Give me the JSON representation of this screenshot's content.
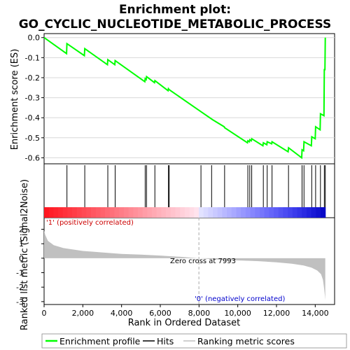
{
  "chart_data": {
    "type": "line",
    "title_lines": [
      "Enrichment plot:",
      "GO_CYCLIC_NUCLEOTIDE_METABOLIC_PROCESS"
    ],
    "panels": {
      "enrichment": {
        "ylabel": "Enrichment score (ES)",
        "ylim": [
          -0.63,
          0.02
        ],
        "yticks": [
          0.0,
          -0.1,
          -0.2,
          -0.3,
          -0.4,
          -0.5,
          -0.6
        ],
        "ytick_labels": [
          "0.0",
          "-0.1",
          "-0.2",
          "-0.3",
          "-0.4",
          "-0.5",
          "-0.6"
        ],
        "line_color": "#00ff00",
        "series": [
          {
            "x": [
              0,
              1160,
              1180,
              2080,
              2100,
              3270,
              3290,
              3650,
              3670,
              5200,
              5220,
              5270,
              5290,
              5700,
              5720,
              6400,
              6420,
              6460,
              8100,
              8700,
              9300,
              9320,
              10500,
              10520,
              10600,
              10620,
              10700,
              10720,
              11300,
              11320,
              11500,
              11520,
              11750,
              11770,
              12600,
              12620,
              13300,
              13320,
              13400,
              13420,
              13800,
              13820,
              14000,
              14020,
              14250,
              14270,
              14450,
              14470,
              14500,
              14520
            ],
            "y": [
              0.0,
              -0.08,
              -0.03,
              -0.09,
              -0.055,
              -0.135,
              -0.11,
              -0.135,
              -0.115,
              -0.22,
              -0.205,
              -0.21,
              -0.195,
              -0.225,
              -0.215,
              -0.265,
              -0.255,
              -0.26,
              -0.37,
              -0.41,
              -0.445,
              -0.45,
              -0.525,
              -0.515,
              -0.52,
              -0.51,
              -0.515,
              -0.505,
              -0.54,
              -0.525,
              -0.535,
              -0.52,
              -0.53,
              -0.52,
              -0.57,
              -0.55,
              -0.6,
              -0.56,
              -0.565,
              -0.52,
              -0.54,
              -0.495,
              -0.505,
              -0.445,
              -0.46,
              -0.38,
              -0.39,
              -0.16,
              -0.16,
              0.0
            ]
          }
        ]
      },
      "hits": {
        "positions": [
          1180,
          2100,
          3290,
          3670,
          5220,
          5290,
          5720,
          6420,
          6460,
          8100,
          8650,
          9320,
          10520,
          10620,
          10720,
          11320,
          11520,
          11770,
          12620,
          13320,
          13420,
          13820,
          14020,
          14270,
          14470,
          14520
        ]
      },
      "ranked_metric": {
        "ylabel": "Ranked list metric (Signal2Noise)",
        "ylim": [
          -3.2,
          2.8
        ],
        "yticks": [
          2,
          1,
          0,
          -1,
          -2,
          -3
        ],
        "ytick_labels": [
          "2",
          "1",
          "0",
          "-1",
          "-2",
          "-3"
        ],
        "fill_color": "#c0c0c0",
        "x": [
          0,
          60,
          200,
          500,
          1000,
          2000,
          3000,
          4000,
          5000,
          6000,
          7000,
          7993,
          9000,
          10000,
          11000,
          12000,
          12800,
          13400,
          13800,
          14100,
          14300,
          14400,
          14450,
          14500,
          14520
        ],
        "y": [
          1.9,
          1.6,
          1.2,
          0.9,
          0.7,
          0.5,
          0.4,
          0.3,
          0.25,
          0.18,
          0.1,
          0.0,
          -0.1,
          -0.15,
          -0.2,
          -0.28,
          -0.38,
          -0.5,
          -0.65,
          -0.85,
          -1.1,
          -1.5,
          -2.0,
          -2.6,
          -2.9
        ],
        "annotations": {
          "positive": "'1' (positively correlated)",
          "negative": "'0' (negatively correlated)",
          "zero_cross": "Zero cross at 7993"
        },
        "zero_cross_x": 7993
      }
    },
    "xlabel": "Rank in Ordered Dataset",
    "xlim": [
      0,
      15000
    ],
    "xticks": [
      0,
      2000,
      4000,
      6000,
      8000,
      10000,
      12000,
      14000
    ],
    "xtick_labels": [
      "0",
      "2,000",
      "4,000",
      "6,000",
      "8,000",
      "10,000",
      "12,000",
      "14,000"
    ],
    "n_genes": 14520,
    "legend": [
      {
        "label": "Enrichment profile",
        "color": "#00ff00"
      },
      {
        "label": "Hits",
        "color": "#000000"
      },
      {
        "label": "Ranking metric scores",
        "color": "#c0c0c0"
      }
    ]
  }
}
